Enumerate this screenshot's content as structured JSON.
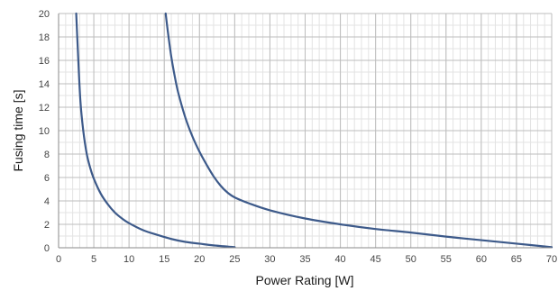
{
  "chart_data": {
    "type": "line",
    "title": "",
    "xlabel": "Power Rating [W]",
    "ylabel": "Fusing time [s]",
    "xlim": [
      0,
      70
    ],
    "ylim": [
      0,
      20
    ],
    "x_ticks": [
      0,
      5,
      10,
      15,
      20,
      25,
      30,
      35,
      40,
      45,
      50,
      55,
      60,
      65,
      70
    ],
    "y_ticks": [
      0,
      2,
      4,
      6,
      8,
      10,
      12,
      14,
      16,
      18,
      20
    ],
    "x_minor_step": 1,
    "y_minor_step": 1,
    "grid": true,
    "legend": "none",
    "series": [
      {
        "color": "#3d5a8a",
        "x": [
          2.5,
          2.8,
          3.1,
          3.5,
          4,
          4.5,
          5,
          6,
          7,
          8,
          9,
          10,
          12,
          14,
          16,
          18,
          20,
          22,
          25
        ],
        "y": [
          20,
          16,
          12.5,
          10,
          8,
          6.8,
          5.9,
          4.6,
          3.7,
          3.0,
          2.5,
          2.1,
          1.5,
          1.1,
          0.75,
          0.5,
          0.35,
          0.2,
          0.05
        ]
      },
      {
        "color": "#3d5a8a",
        "x": [
          15.2,
          15.5,
          16,
          16.5,
          17,
          18,
          19,
          20,
          21,
          22,
          23,
          24,
          25,
          27,
          30,
          35,
          40,
          45,
          50,
          55,
          60,
          65,
          70
        ],
        "y": [
          20,
          18.5,
          16.3,
          14.6,
          13.2,
          11.1,
          9.5,
          8.2,
          7.1,
          6.1,
          5.3,
          4.7,
          4.3,
          3.8,
          3.2,
          2.5,
          2.0,
          1.6,
          1.3,
          0.95,
          0.65,
          0.35,
          0.05
        ]
      }
    ]
  }
}
